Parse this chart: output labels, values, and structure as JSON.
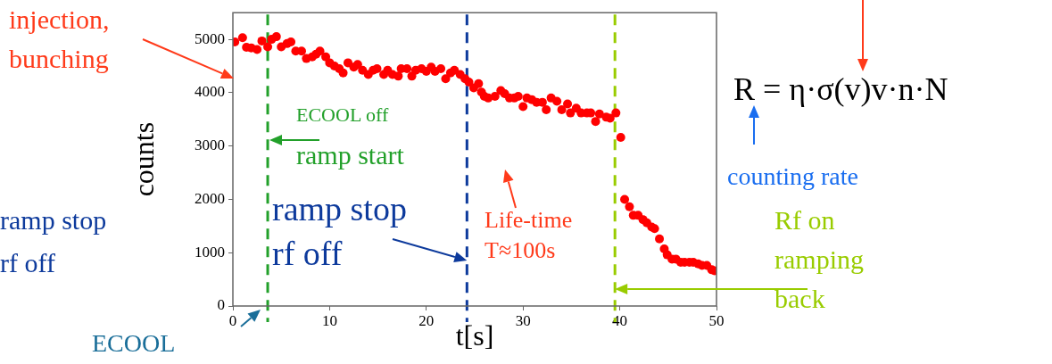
{
  "chart_data": {
    "type": "scatter",
    "xlabel": "t[s]",
    "ylabel": "counts",
    "xlim": [
      0,
      50
    ],
    "ylim": [
      0,
      5500
    ],
    "xticks": [
      0,
      10,
      20,
      30,
      40,
      50
    ],
    "yticks": [
      0,
      1000,
      2000,
      3000,
      4000,
      5000
    ],
    "grid": false,
    "legend": false,
    "marker": "circle",
    "series": [
      {
        "color": "#ff0000",
        "x": [
          0.2,
          1.0,
          1.4,
          1.9,
          2.5,
          3.0,
          3.6,
          4.0,
          4.5,
          5.0,
          5.6,
          6.0,
          6.5,
          7.1,
          7.6,
          8.2,
          8.6,
          9.0,
          9.6,
          10.0,
          10.5,
          11.0,
          11.4,
          11.9,
          12.5,
          12.9,
          13.4,
          14.0,
          14.5,
          14.9,
          15.6,
          16.0,
          16.5,
          17.1,
          17.4,
          18.0,
          18.5,
          18.9,
          19.5,
          20.0,
          20.5,
          20.9,
          21.5,
          22.0,
          22.5,
          22.9,
          23.5,
          24.0,
          24.4,
          24.9,
          25.4,
          25.7,
          26.0,
          26.4,
          27.1,
          27.7,
          28.1,
          28.6,
          29.1,
          29.5,
          30.0,
          30.4,
          30.9,
          31.4,
          32.0,
          32.4,
          32.9,
          33.5,
          34.0,
          34.6,
          34.9,
          35.5,
          36.0,
          36.6,
          37.0,
          37.5,
          37.9,
          38.6,
          39.0,
          39.6,
          40.1,
          40.5,
          41.0,
          41.4,
          41.9,
          42.4,
          42.8,
          43.3,
          43.6,
          44.1,
          44.6,
          44.9,
          45.4,
          45.8,
          46.3,
          46.7,
          47.2,
          47.6,
          48.1,
          48.5,
          49.0,
          49.5,
          49.8
        ],
        "values": [
          4950,
          5030,
          4850,
          4840,
          4810,
          4970,
          4860,
          5000,
          5050,
          4860,
          4920,
          4950,
          4780,
          4780,
          4640,
          4670,
          4720,
          4780,
          4670,
          4560,
          4500,
          4450,
          4370,
          4560,
          4480,
          4530,
          4420,
          4340,
          4420,
          4450,
          4340,
          4420,
          4340,
          4310,
          4450,
          4450,
          4310,
          4420,
          4450,
          4400,
          4480,
          4400,
          4450,
          4260,
          4370,
          4420,
          4340,
          4260,
          4200,
          4090,
          4170,
          4010,
          3930,
          3900,
          3930,
          4040,
          3980,
          3900,
          3900,
          3930,
          3740,
          3900,
          3870,
          3820,
          3820,
          3680,
          3900,
          3840,
          3680,
          3790,
          3620,
          3710,
          3620,
          3620,
          3620,
          3460,
          3600,
          3540,
          3520,
          3620,
          3160,
          2000,
          1860,
          1700,
          1700,
          1620,
          1560,
          1480,
          1450,
          1260,
          1070,
          960,
          880,
          880,
          820,
          820,
          820,
          820,
          790,
          760,
          760,
          680,
          660
        ]
      }
    ],
    "ref_lines": [
      {
        "axis": "x",
        "value": 3.6,
        "label": "ECOOL off\nramp start",
        "color": "#22a02a",
        "line_style": "dashed"
      },
      {
        "axis": "x",
        "value": 24.2,
        "label": "ramp stop\nrf off",
        "color": "#0d3a9c",
        "line_style": "dashed"
      },
      {
        "axis": "x",
        "value": 39.5,
        "label": "Rf on\nramping\nback",
        "color": "#99cc00",
        "line_style": "dashed"
      }
    ],
    "annotations": [
      "injection,\nbunching",
      "Life-time\nT≈100s",
      "ECOOL",
      "ramp stop\nrf off",
      "R = η·σ(v)v·n·N",
      "counting rate"
    ]
  }
}
